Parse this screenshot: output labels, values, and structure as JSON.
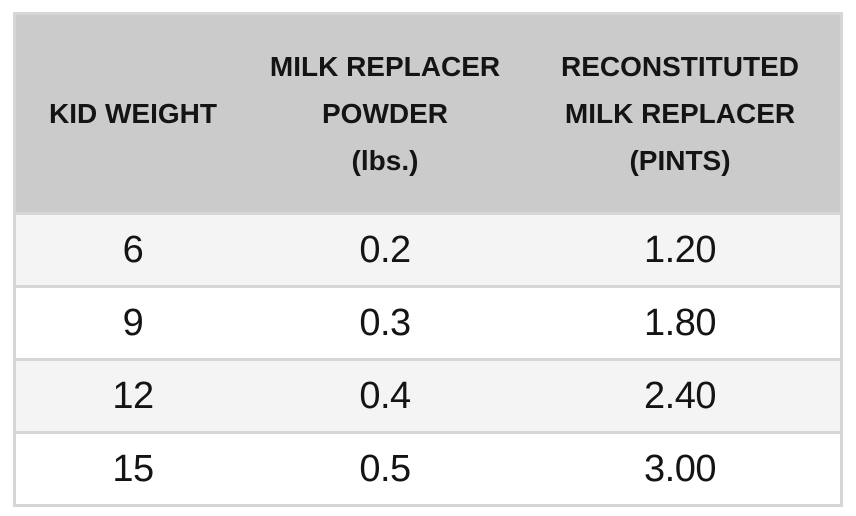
{
  "chart_data": {
    "type": "table",
    "title": "",
    "columns": [
      "KID WEIGHT",
      "MILK REPLACER POWDER (lbs.)",
      "RECONSTITUTED MILK REPLACER (PINTS)"
    ],
    "rows": [
      [
        "6",
        "0.2",
        "1.20"
      ],
      [
        "9",
        "0.3",
        "1.80"
      ],
      [
        "12",
        "0.4",
        "2.40"
      ],
      [
        "15",
        "0.5",
        "3.00"
      ]
    ]
  },
  "table": {
    "headers": [
      {
        "lines": [
          "KID WEIGHT"
        ]
      },
      {
        "lines": [
          "MILK REPLACER",
          "POWDER",
          "(lbs.)"
        ]
      },
      {
        "lines": [
          "RECONSTITUTED",
          "MILK REPLACER",
          "(PINTS)"
        ]
      }
    ],
    "rows": [
      {
        "cells": [
          "6",
          "0.2",
          "1.20"
        ]
      },
      {
        "cells": [
          "9",
          "0.3",
          "1.80"
        ]
      },
      {
        "cells": [
          "12",
          "0.4",
          "2.40"
        ]
      },
      {
        "cells": [
          "15",
          "0.5",
          "3.00"
        ]
      }
    ],
    "colors": {
      "header_bg": "#cbcbcb",
      "row_odd_bg": "#f4f4f4",
      "row_even_bg": "#ffffff",
      "border": "#d6d6d6",
      "text": "#141414"
    }
  }
}
